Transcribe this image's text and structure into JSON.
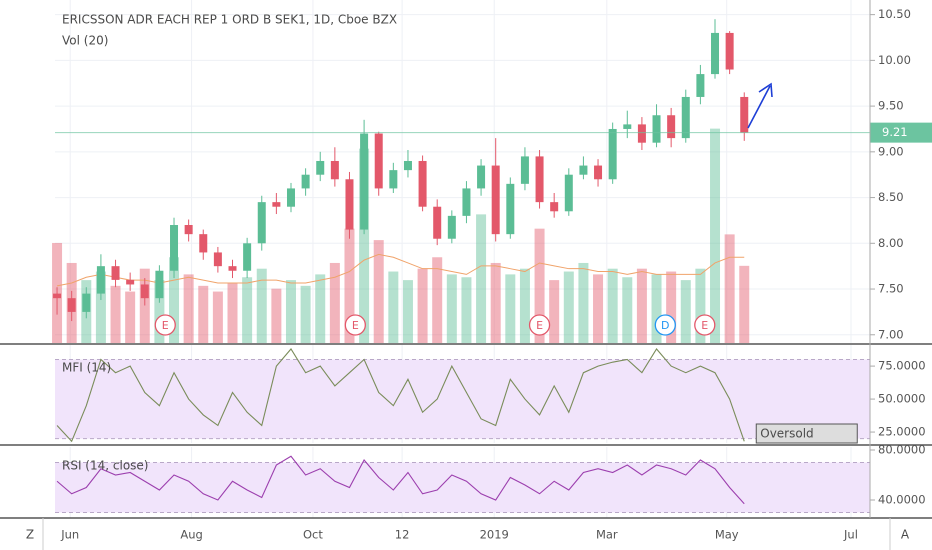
{
  "chart_data": [
    {
      "type": "candlestick",
      "title": "ERICSSON ADR EACH REP 1 ORD B SEK1, 1D, Cboe BZX",
      "subtitle": "Vol (20)",
      "xlim": [
        -0.14,
        55.6
      ],
      "xticks": [
        {
          "value": 0.9,
          "label": "Jun"
        },
        {
          "value": 9.2,
          "label": "Aug"
        },
        {
          "value": 17.5,
          "label": "Oct"
        },
        {
          "value": 23.6,
          "label": "12"
        },
        {
          "value": 29.9,
          "label": "2019"
        },
        {
          "value": 37.6,
          "label": "Mar"
        },
        {
          "value": 45.8,
          "label": "May"
        },
        {
          "value": 54.3,
          "label": "Jul"
        }
      ],
      "ylim": [
        6.91,
        10.66
      ],
      "yticks": [
        {
          "value": 10.5,
          "label": "10.50"
        },
        {
          "value": 10,
          "label": "10.00"
        },
        {
          "value": 9.5,
          "label": "9.50"
        },
        {
          "value": 9,
          "label": "9.00"
        },
        {
          "value": 8.5,
          "label": "8.50"
        },
        {
          "value": 8,
          "label": "8.00"
        },
        {
          "value": 7.5,
          "label": "7.50"
        },
        {
          "value": 7,
          "label": "7.00"
        }
      ],
      "grid": true,
      "up_color": "#5bbd95",
      "down_color": "#e3586a",
      "last_price_color": "#6cc4a0",
      "open": [
        7.45,
        7.4,
        7.25,
        7.45,
        7.75,
        7.6,
        7.55,
        7.4,
        7.7,
        8.2,
        8.1,
        7.9,
        7.75,
        7.7,
        8.0,
        8.45,
        8.4,
        8.6,
        8.75,
        8.9,
        8.7,
        8.15,
        9.2,
        8.6,
        8.8,
        8.9,
        8.4,
        8.05,
        8.3,
        8.6,
        8.85,
        8.1,
        8.65,
        8.95,
        8.45,
        8.35,
        8.75,
        8.85,
        8.7,
        9.25,
        9.3,
        9.1,
        9.4,
        9.15,
        9.6,
        9.85,
        10.3,
        9.6
      ],
      "high": [
        7.52,
        7.48,
        7.52,
        7.88,
        7.82,
        7.68,
        7.62,
        7.76,
        8.28,
        8.26,
        8.15,
        7.96,
        7.82,
        8.06,
        8.52,
        8.55,
        8.66,
        8.82,
        9.0,
        9.05,
        8.78,
        9.35,
        9.22,
        8.88,
        9.02,
        8.96,
        8.48,
        8.36,
        8.68,
        8.92,
        9.15,
        8.72,
        9.05,
        9.02,
        8.55,
        8.82,
        8.95,
        8.92,
        9.32,
        9.45,
        9.38,
        9.52,
        9.48,
        9.68,
        9.95,
        10.45,
        10.32,
        9.65
      ],
      "low": [
        7.22,
        7.15,
        7.18,
        7.38,
        7.52,
        7.48,
        7.32,
        7.35,
        7.62,
        8.02,
        7.82,
        7.68,
        7.62,
        7.62,
        7.92,
        8.32,
        8.34,
        8.52,
        8.68,
        8.62,
        8.05,
        8.1,
        8.52,
        8.55,
        8.72,
        8.35,
        7.98,
        8.0,
        8.22,
        8.52,
        8.02,
        8.05,
        8.58,
        8.38,
        8.28,
        8.3,
        8.7,
        8.62,
        8.65,
        9.15,
        9.02,
        9.05,
        9.05,
        9.1,
        9.52,
        9.8,
        9.85,
        9.12
      ],
      "close": [
        7.4,
        7.25,
        7.45,
        7.75,
        7.6,
        7.55,
        7.4,
        7.7,
        8.2,
        8.1,
        7.9,
        7.75,
        7.7,
        8.0,
        8.45,
        8.4,
        8.6,
        8.75,
        8.9,
        8.7,
        8.15,
        9.2,
        8.6,
        8.8,
        8.9,
        8.4,
        8.05,
        8.3,
        8.6,
        8.85,
        8.1,
        8.65,
        8.95,
        8.45,
        8.35,
        8.75,
        8.85,
        8.7,
        9.25,
        9.3,
        9.1,
        9.4,
        9.15,
        9.6,
        9.85,
        10.3,
        9.9,
        9.21
      ],
      "volume_ylim": [
        0,
        12
      ],
      "volume": [
        3.5,
        2.8,
        2.2,
        2.5,
        2.0,
        1.8,
        2.6,
        2.2,
        3.0,
        2.4,
        2.0,
        1.8,
        2.1,
        2.3,
        2.6,
        1.9,
        2.2,
        2.0,
        2.4,
        2.8,
        4.0,
        6.8,
        3.6,
        2.5,
        2.2,
        2.6,
        3.0,
        2.4,
        2.3,
        4.5,
        2.8,
        2.4,
        2.6,
        4.0,
        2.2,
        2.5,
        2.8,
        2.4,
        2.6,
        2.3,
        2.6,
        2.4,
        2.5,
        2.2,
        2.6,
        7.5,
        3.8,
        2.7
      ],
      "volume_ma": [
        2.0,
        2.1,
        2.3,
        2.4,
        2.3,
        2.2,
        2.2,
        2.1,
        2.2,
        2.3,
        2.2,
        2.1,
        2.1,
        2.1,
        2.2,
        2.2,
        2.1,
        2.1,
        2.2,
        2.3,
        2.5,
        2.9,
        3.1,
        3.0,
        2.8,
        2.6,
        2.6,
        2.5,
        2.4,
        2.7,
        2.7,
        2.6,
        2.5,
        2.8,
        2.7,
        2.6,
        2.6,
        2.5,
        2.5,
        2.4,
        2.5,
        2.4,
        2.4,
        2.4,
        2.4,
        2.8,
        3.0,
        3.0
      ],
      "volume_ma_color": "#f0a36a",
      "events": [
        {
          "label": "E",
          "x": 7.4,
          "color": "#e3586a"
        },
        {
          "label": "E",
          "x": 20.4,
          "color": "#e3586a"
        },
        {
          "label": "E",
          "x": 33.0,
          "color": "#e3586a"
        },
        {
          "label": "D",
          "x": 41.6,
          "color": "#2196f3"
        },
        {
          "label": "E",
          "x": 44.3,
          "color": "#e3586a"
        }
      ]
    },
    {
      "type": "line",
      "title": "MFI (14)",
      "color": "#7a8c5a",
      "band_color": "#f1e4fb",
      "ylim": [
        16.7,
        91
      ],
      "yticks": [
        {
          "value": 75,
          "label": "75.0000"
        },
        {
          "value": 50,
          "label": "50.0000"
        },
        {
          "value": 25,
          "label": "25.0000"
        }
      ],
      "band": [
        20,
        80
      ],
      "annotation": "Oversold",
      "values": [
        30,
        18,
        45,
        80,
        70,
        75,
        55,
        45,
        70,
        50,
        38,
        30,
        55,
        40,
        30,
        75,
        88,
        70,
        75,
        60,
        70,
        80,
        55,
        45,
        65,
        40,
        50,
        75,
        55,
        35,
        30,
        65,
        50,
        38,
        60,
        40,
        70,
        75,
        78,
        80,
        70,
        88,
        75,
        70,
        75,
        70,
        50,
        18
      ]
    },
    {
      "type": "line",
      "title": "RSI (14, close)",
      "color": "#9c3fae",
      "band_color": "#f1e4fb",
      "ylim": [
        25.6,
        82.4
      ],
      "yticks": [
        {
          "value": 80,
          "label": "80.0000"
        },
        {
          "value": 40,
          "label": "40.0000"
        }
      ],
      "band": [
        30,
        70
      ],
      "values": [
        55,
        45,
        50,
        65,
        60,
        62,
        55,
        48,
        60,
        55,
        45,
        40,
        55,
        48,
        42,
        68,
        75,
        60,
        65,
        55,
        50,
        72,
        58,
        48,
        62,
        45,
        48,
        60,
        55,
        45,
        40,
        58,
        52,
        45,
        55,
        48,
        62,
        65,
        62,
        68,
        60,
        68,
        65,
        60,
        72,
        65,
        50,
        37
      ]
    }
  ]
}
